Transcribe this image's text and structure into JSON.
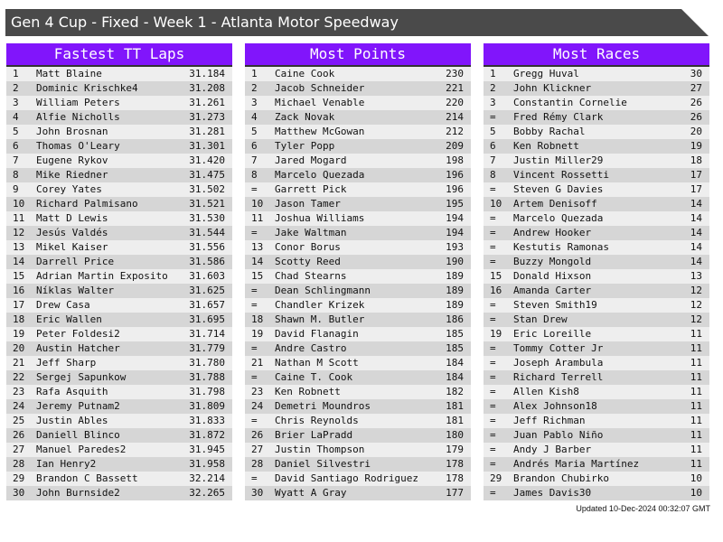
{
  "title": "Gen 4 Cup - Fixed - Week 1 - Atlanta Motor Speedway",
  "accent": "#8115fb",
  "tables": [
    {
      "heading": "Fastest TT Laps",
      "rows": [
        [
          "1",
          "Matt Blaine",
          "31.184"
        ],
        [
          "2",
          "Dominic Krischke4",
          "31.208"
        ],
        [
          "3",
          "William Peters",
          "31.261"
        ],
        [
          "4",
          "Alfie Nicholls",
          "31.273"
        ],
        [
          "5",
          "John Brosnan",
          "31.281"
        ],
        [
          "6",
          "Thomas O'Leary",
          "31.301"
        ],
        [
          "7",
          "Eugene Rykov",
          "31.420"
        ],
        [
          "8",
          "Mike Riedner",
          "31.475"
        ],
        [
          "9",
          "Corey Yates",
          "31.502"
        ],
        [
          "10",
          "Richard Palmisano",
          "31.521"
        ],
        [
          "11",
          "Matt D Lewis",
          "31.530"
        ],
        [
          "12",
          "Jesús Valdés",
          "31.544"
        ],
        [
          "13",
          "Mikel Kaiser",
          "31.556"
        ],
        [
          "14",
          "Darrell Price",
          "31.586"
        ],
        [
          "15",
          "Adrian Martin Exposito",
          "31.603"
        ],
        [
          "16",
          "Níklas Walter",
          "31.625"
        ],
        [
          "17",
          "Drew Casa",
          "31.657"
        ],
        [
          "18",
          "Eric Wallen",
          "31.695"
        ],
        [
          "19",
          "Peter Foldesi2",
          "31.714"
        ],
        [
          "20",
          "Austin Hatcher",
          "31.779"
        ],
        [
          "21",
          "Jeff Sharp",
          "31.780"
        ],
        [
          "22",
          "Sergej Sapunkow",
          "31.788"
        ],
        [
          "23",
          "Rafa Asquith",
          "31.798"
        ],
        [
          "24",
          "Jeremy Putnam2",
          "31.809"
        ],
        [
          "25",
          "Justin Ables",
          "31.833"
        ],
        [
          "26",
          "Daniell Blinco",
          "31.872"
        ],
        [
          "27",
          "Manuel Paredes2",
          "31.945"
        ],
        [
          "28",
          "Ian Henry2",
          "31.958"
        ],
        [
          "29",
          "Brandon C Bassett",
          "32.214"
        ],
        [
          "30",
          "John Burnside2",
          "32.265"
        ]
      ]
    },
    {
      "heading": "Most Points",
      "rows": [
        [
          "1",
          "Caine Cook",
          "230"
        ],
        [
          "2",
          "Jacob Schneider",
          "221"
        ],
        [
          "3",
          "Michael Venable",
          "220"
        ],
        [
          "4",
          "Zack Novak",
          "214"
        ],
        [
          "5",
          "Matthew McGowan",
          "212"
        ],
        [
          "6",
          "Tyler Popp",
          "209"
        ],
        [
          "7",
          "Jared Mogard",
          "198"
        ],
        [
          "8",
          "Marcelo Quezada",
          "196"
        ],
        [
          "=",
          "Garrett Pick",
          "196"
        ],
        [
          "10",
          "Jason Tamer",
          "195"
        ],
        [
          "11",
          "Joshua Williams",
          "194"
        ],
        [
          "=",
          "Jake Waltman",
          "194"
        ],
        [
          "13",
          "Conor Borus",
          "193"
        ],
        [
          "14",
          "Scotty Reed",
          "190"
        ],
        [
          "15",
          "Chad Stearns",
          "189"
        ],
        [
          "=",
          "Dean Schlingmann",
          "189"
        ],
        [
          "=",
          "Chandler Krizek",
          "189"
        ],
        [
          "18",
          "Shawn M. Butler",
          "186"
        ],
        [
          "19",
          "David Flanagin",
          "185"
        ],
        [
          "=",
          "Andre Castro",
          "185"
        ],
        [
          "21",
          "Nathan M Scott",
          "184"
        ],
        [
          "=",
          "Caine T. Cook",
          "184"
        ],
        [
          "23",
          "Ken Robnett",
          "182"
        ],
        [
          "24",
          "Demetri Moundros",
          "181"
        ],
        [
          "=",
          "Chris Reynolds",
          "181"
        ],
        [
          "26",
          "Brier LaPradd",
          "180"
        ],
        [
          "27",
          "Justin Thompson",
          "179"
        ],
        [
          "28",
          "Daniel Silvestri",
          "178"
        ],
        [
          "=",
          "David Santiago Rodriguez",
          "178"
        ],
        [
          "30",
          "Wyatt A Gray",
          "177"
        ]
      ]
    },
    {
      "heading": "Most Races",
      "rows": [
        [
          "1",
          "Gregg Huval",
          "30"
        ],
        [
          "2",
          "John Klickner",
          "27"
        ],
        [
          "3",
          "Constantin Cornelie",
          "26"
        ],
        [
          "=",
          "Fred Rémy Clark",
          "26"
        ],
        [
          "5",
          "Bobby Rachal",
          "20"
        ],
        [
          "6",
          "Ken Robnett",
          "19"
        ],
        [
          "7",
          "Justin Miller29",
          "18"
        ],
        [
          "8",
          "Vincent Rossetti",
          "17"
        ],
        [
          "=",
          "Steven G Davies",
          "17"
        ],
        [
          "10",
          "Artem Denisoff",
          "14"
        ],
        [
          "=",
          "Marcelo Quezada",
          "14"
        ],
        [
          "=",
          "Andrew Hooker",
          "14"
        ],
        [
          "=",
          "Kestutis Ramonas",
          "14"
        ],
        [
          "=",
          "Buzzy Mongold",
          "14"
        ],
        [
          "15",
          "Donald Hixson",
          "13"
        ],
        [
          "16",
          "Amanda Carter",
          "12"
        ],
        [
          "=",
          "Steven Smith19",
          "12"
        ],
        [
          "=",
          "Stan Drew",
          "12"
        ],
        [
          "19",
          "Eric Loreille",
          "11"
        ],
        [
          "=",
          "Tommy Cotter Jr",
          "11"
        ],
        [
          "=",
          "Joseph Arambula",
          "11"
        ],
        [
          "=",
          "Richard Terrell",
          "11"
        ],
        [
          "=",
          "Allen Kish8",
          "11"
        ],
        [
          "=",
          "Alex Johnson18",
          "11"
        ],
        [
          "=",
          "Jeff Richman",
          "11"
        ],
        [
          "=",
          "Juan Pablo Niño",
          "11"
        ],
        [
          "=",
          "Andy J Barber",
          "11"
        ],
        [
          "=",
          "Andrés Maria Martínez",
          "11"
        ],
        [
          "29",
          "Brandon Chubirko",
          "10"
        ],
        [
          "=",
          "James Davis30",
          "10"
        ]
      ]
    }
  ],
  "updated": "Updated 10-Dec-2024 00:32:07 GMT"
}
